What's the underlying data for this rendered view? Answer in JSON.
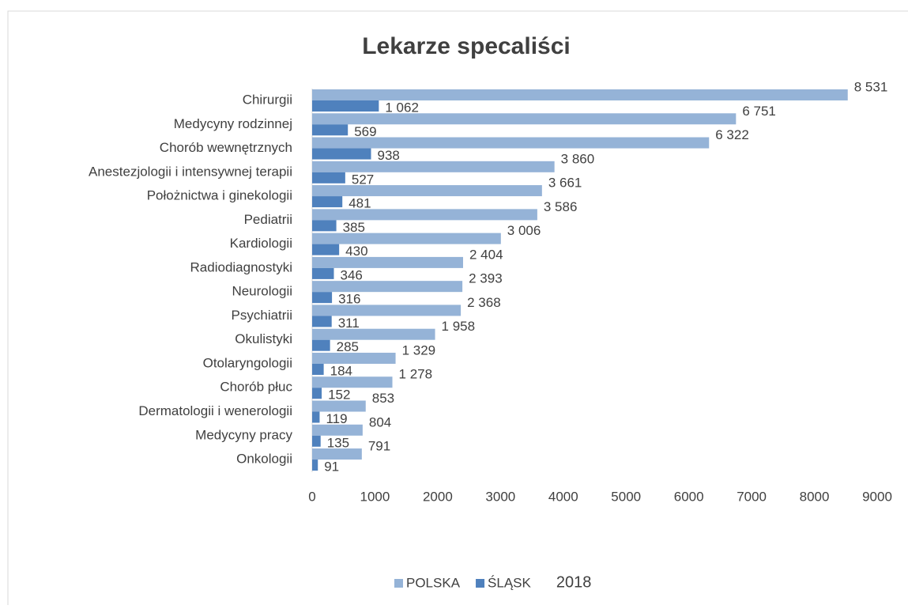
{
  "chart_data": {
    "type": "bar",
    "orientation": "horizontal",
    "title": "Lekarze specaliści",
    "categories": [
      "Chirurgii",
      "Medycyny rodzinnej",
      "Chorób wewnętrznych",
      "Anestezjologii i intensywnej terapii",
      "Położnictwa i ginekologii",
      "Pediatrii",
      "Kardiologii",
      "Radiodiagnostyki",
      "Neurologii",
      "Psychiatrii",
      "Okulistyki",
      "Otolaryngologii",
      "Chorób płuc",
      "Dermatologii i wenerologii",
      "Medycyny pracy",
      "Onkologii"
    ],
    "series": [
      {
        "name": "POLSKA",
        "color": "#95b3d7",
        "values": [
          8531,
          6751,
          6322,
          3860,
          3661,
          3586,
          3006,
          2404,
          2393,
          2368,
          1958,
          1329,
          1278,
          853,
          804,
          791
        ],
        "value_labels": [
          "8 531",
          "6 751",
          "6 322",
          "3 860",
          "3 661",
          "3 586",
          "3 006",
          "2 404",
          "2 393",
          "2 368",
          "1 958",
          "1 329",
          "1 278",
          "853",
          "804",
          "791"
        ]
      },
      {
        "name": "ŚLĄSK",
        "color": "#4f81bd",
        "values": [
          1062,
          569,
          938,
          527,
          481,
          385,
          430,
          346,
          316,
          311,
          285,
          184,
          152,
          119,
          135,
          91
        ],
        "value_labels": [
          "1 062",
          "569",
          "938",
          "527",
          "481",
          "385",
          "430",
          "346",
          "316",
          "311",
          "285",
          "184",
          "152",
          "119",
          "135",
          "91"
        ]
      }
    ],
    "xlim": [
      0,
      9000
    ],
    "xticks": [
      0,
      1000,
      2000,
      3000,
      4000,
      5000,
      6000,
      7000,
      8000,
      9000
    ],
    "legend": "bottom",
    "annotation": "2018"
  }
}
